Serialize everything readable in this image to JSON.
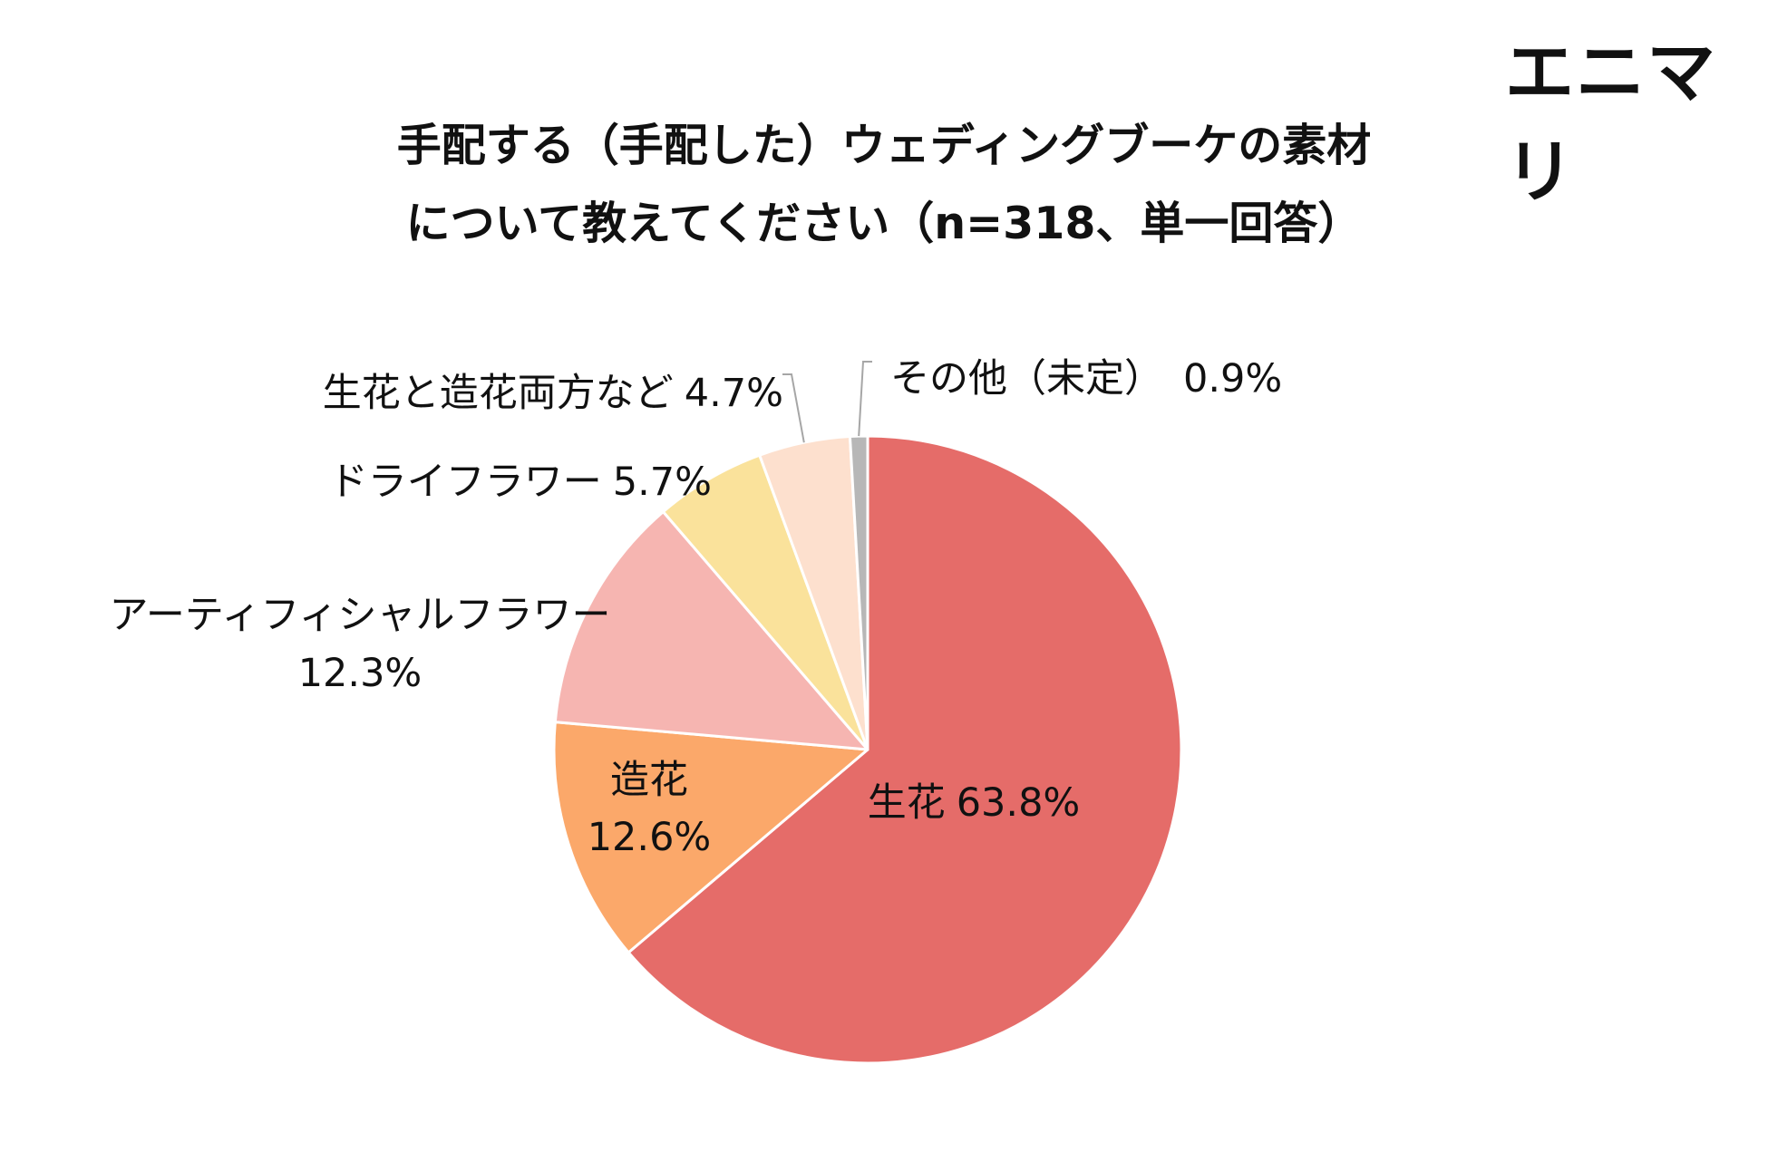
{
  "brand": {
    "logo_text": "エニマリ"
  },
  "chart_data": {
    "type": "pie",
    "title_lines": [
      "手配する（手配した）ウェディングブーケの素材",
      "について教えてください（n=318、単一回答）"
    ],
    "slices": [
      {
        "label": "生花",
        "value": 63.8,
        "value_text": "63.8%",
        "color": "#E56C69"
      },
      {
        "label": "造花",
        "value": 12.6,
        "value_text": "12.6%",
        "color": "#FBA86A"
      },
      {
        "label": "アーティフィシャルフラワー",
        "value": 12.3,
        "value_text": "12.3%",
        "color": "#F6B5B1"
      },
      {
        "label": "ドライフラワー",
        "value": 5.7,
        "value_text": "5.7%",
        "color": "#FAE29B"
      },
      {
        "label": "生花と造花両方など",
        "value": 4.7,
        "value_text": "4.7%",
        "color": "#FDE0CE"
      },
      {
        "label": "その他（未定）",
        "value": 0.9,
        "value_text": "0.9%",
        "color": "#B7B7B7"
      }
    ]
  }
}
